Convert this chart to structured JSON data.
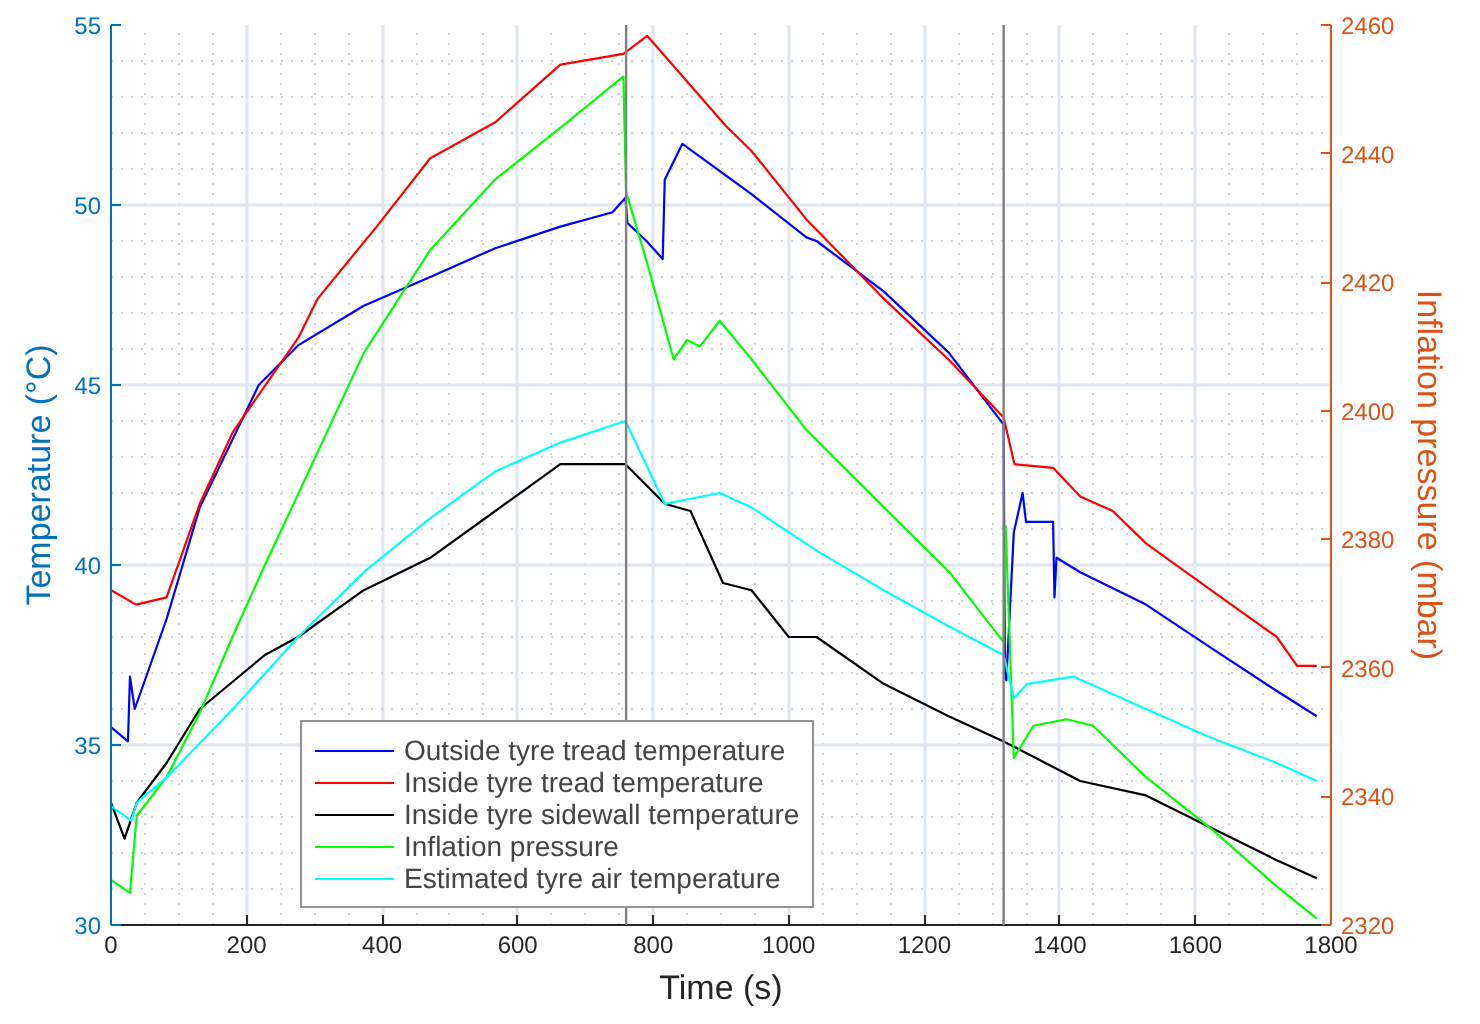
{
  "chart_data": {
    "type": "line",
    "xlabel": "Time (s)",
    "ylabel": "Temperature (°C)",
    "y2label": "Inflation pressure (mbar)",
    "xlim": [
      0,
      1800
    ],
    "xticks": [
      0,
      200,
      400,
      600,
      800,
      1000,
      1200,
      1400,
      1600,
      1800
    ],
    "ylim": [
      30,
      55
    ],
    "yticks": [
      30,
      35,
      40,
      45,
      50,
      55
    ],
    "y2lim": [
      2320,
      2460
    ],
    "y2ticks": [
      2320,
      2340,
      2360,
      2380,
      2400,
      2420,
      2440,
      2460
    ],
    "grid": true,
    "legend": "bottom left",
    "line_style": "solid",
    "marker": "none",
    "ref_lines": [
      {
        "axis": "x",
        "value": 760,
        "color": "#808080"
      },
      {
        "axis": "x",
        "value": 1317,
        "color": "#808080"
      }
    ],
    "series": [
      {
        "name": "Outside tyre tread temperature",
        "color": "#0000ff",
        "x": [
          0,
          25,
          28,
          35,
          82,
          131,
          218,
          276,
          373,
          471,
          567,
          663,
          740,
          759,
          762,
          790,
          814,
          817,
          843,
          945,
          1026,
          1041,
          1140,
          1236,
          1317,
          1319,
          1321,
          1332,
          1345,
          1350,
          1390,
          1392,
          1395,
          1430,
          1527,
          1623,
          1720,
          1779
        ],
        "values": [
          35.5,
          35.1,
          36.9,
          36.0,
          38.5,
          41.6,
          45.0,
          46.1,
          47.2,
          48.0,
          48.8,
          49.4,
          49.8,
          50.2,
          49.5,
          49.0,
          48.5,
          50.7,
          51.7,
          50.3,
          49.1,
          49.0,
          47.6,
          45.9,
          43.9,
          37.0,
          36.8,
          40.9,
          42.0,
          41.2,
          41.2,
          39.1,
          40.2,
          39.8,
          38.9,
          37.7,
          36.5,
          35.8
        ]
      },
      {
        "name": "Inside tyre tread temperature",
        "color": "#ff0000",
        "x": [
          0,
          37,
          82,
          131,
          180,
          276,
          305,
          392,
          471,
          567,
          663,
          756,
          791,
          907,
          945,
          1026,
          1140,
          1236,
          1317,
          1333,
          1390,
          1430,
          1478,
          1527,
          1623,
          1720,
          1750,
          1779
        ],
        "values": [
          39.3,
          38.9,
          39.1,
          41.7,
          43.7,
          46.3,
          47.4,
          49.4,
          51.3,
          52.3,
          53.9,
          54.2,
          54.7,
          52.2,
          51.5,
          49.6,
          47.4,
          45.7,
          44.1,
          42.8,
          42.7,
          41.9,
          41.5,
          40.6,
          39.3,
          38.0,
          37.2,
          37.2
        ]
      },
      {
        "name": "Inside tyre sidewall temperature",
        "color": "#000000",
        "x": [
          0,
          20,
          38,
          82,
          131,
          227,
          276,
          373,
          471,
          567,
          663,
          759,
          817,
          855,
          903,
          945,
          1000,
          1041,
          1140,
          1236,
          1317,
          1430,
          1527,
          1623,
          1720,
          1779
        ],
        "values": [
          33.4,
          32.4,
          33.4,
          34.5,
          36.0,
          37.5,
          38.0,
          39.3,
          40.2,
          41.5,
          42.8,
          42.8,
          41.7,
          41.5,
          39.5,
          39.3,
          38.0,
          38.0,
          36.7,
          35.8,
          35.1,
          34.0,
          33.6,
          32.7,
          31.8,
          31.3
        ]
      },
      {
        "name": "Inflation pressure",
        "color": "#00ff00",
        "axis": "y2",
        "x": [
          0,
          28,
          38,
          82,
          131,
          180,
          227,
          276,
          373,
          471,
          567,
          663,
          756,
          760,
          791,
          830,
          850,
          869,
          898,
          945,
          1026,
          1140,
          1236,
          1317,
          1320,
          1332,
          1361,
          1410,
          1449,
          1527,
          1623,
          1720,
          1779
        ],
        "values": [
          2327,
          2325,
          2337,
          2343,
          2353,
          2365,
          2376,
          2387,
          2409,
          2425,
          2436,
          2444,
          2452,
          2434,
          2423,
          2408,
          2411,
          2410,
          2414,
          2408,
          2397,
          2385,
          2375,
          2364,
          2382,
          2346,
          2351,
          2352,
          2351,
          2343,
          2335,
          2326,
          2321
        ]
      },
      {
        "name": "Estimated tyre air temperature",
        "color": "#00ffff",
        "x": [
          0,
          30,
          38,
          82,
          180,
          276,
          373,
          471,
          567,
          663,
          759,
          817,
          898,
          945,
          1041,
          1140,
          1236,
          1317,
          1332,
          1352,
          1420,
          1527,
          1623,
          1720,
          1779
        ],
        "values": [
          33.3,
          32.9,
          33.4,
          34.1,
          36.0,
          38.0,
          39.8,
          41.3,
          42.6,
          43.4,
          44.0,
          41.7,
          42.0,
          41.6,
          40.4,
          39.3,
          38.3,
          37.5,
          36.3,
          36.7,
          36.9,
          36.0,
          35.2,
          34.5,
          34.0
        ]
      }
    ]
  }
}
